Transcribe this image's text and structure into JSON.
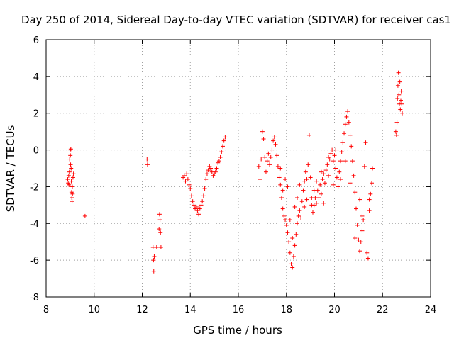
{
  "chart_data": {
    "type": "scatter",
    "title": "Day 250 of 2014, Sidereal Day-to-day VTEC variation (SDTVAR) for receiver cas1",
    "xlabel": "GPS time / hours",
    "ylabel": "SDTVAR / TECUs",
    "xlim": [
      8,
      24
    ],
    "ylim": [
      -8,
      6
    ],
    "xticks": [
      8,
      10,
      12,
      14,
      16,
      18,
      20,
      22,
      24
    ],
    "yticks": [
      -8,
      -6,
      -4,
      -2,
      0,
      2,
      4,
      6
    ],
    "xtick_labels": [
      "8",
      "10",
      "12",
      "14",
      "16",
      "18",
      "20",
      "22",
      "24"
    ],
    "ytick_labels": [
      "-8",
      "-6",
      "-4",
      "-2",
      "0",
      "2",
      "4",
      "6"
    ],
    "grid": true,
    "legend": "none",
    "marker": "+",
    "color": "#ff0000",
    "series": [
      {
        "name": "SDTVAR",
        "points": [
          [
            8.9,
            -1.6
          ],
          [
            8.92,
            -1.8
          ],
          [
            8.94,
            -1.4
          ],
          [
            8.95,
            -1.9
          ],
          [
            8.97,
            -1.2
          ],
          [
            8.98,
            -0.5
          ],
          [
            9.0,
            0.0
          ],
          [
            9.01,
            -0.3
          ],
          [
            9.02,
            -0.8
          ],
          [
            9.03,
            0.05
          ],
          [
            9.04,
            -1.0
          ],
          [
            9.05,
            -1.7
          ],
          [
            9.06,
            -2.3
          ],
          [
            9.07,
            -2.6
          ],
          [
            9.08,
            -2.8
          ],
          [
            9.09,
            -2.0
          ],
          [
            9.1,
            -2.4
          ],
          [
            9.12,
            -1.5
          ],
          [
            9.14,
            -1.3
          ],
          [
            9.62,
            -3.6
          ],
          [
            12.2,
            -0.5
          ],
          [
            12.22,
            -0.8
          ],
          [
            12.45,
            -5.3
          ],
          [
            12.47,
            -6.0
          ],
          [
            12.48,
            -6.6
          ],
          [
            12.5,
            -5.8
          ],
          [
            12.6,
            -5.3
          ],
          [
            12.7,
            -4.3
          ],
          [
            12.72,
            -3.5
          ],
          [
            12.74,
            -3.8
          ],
          [
            12.76,
            -4.5
          ],
          [
            12.78,
            -5.3
          ],
          [
            13.7,
            -1.5
          ],
          [
            13.75,
            -1.4
          ],
          [
            13.8,
            -1.7
          ],
          [
            13.85,
            -1.3
          ],
          [
            13.9,
            -1.6
          ],
          [
            13.95,
            -1.9
          ],
          [
            14.0,
            -2.1
          ],
          [
            14.05,
            -2.5
          ],
          [
            14.1,
            -2.8
          ],
          [
            14.15,
            -3.0
          ],
          [
            14.2,
            -3.2
          ],
          [
            14.25,
            -3.1
          ],
          [
            14.3,
            -3.3
          ],
          [
            14.35,
            -3.5
          ],
          [
            14.4,
            -3.2
          ],
          [
            14.45,
            -3.0
          ],
          [
            14.5,
            -2.8
          ],
          [
            14.55,
            -2.5
          ],
          [
            14.6,
            -2.1
          ],
          [
            14.65,
            -1.6
          ],
          [
            14.7,
            -1.3
          ],
          [
            14.75,
            -1.1
          ],
          [
            14.8,
            -0.9
          ],
          [
            14.85,
            -1.0
          ],
          [
            14.9,
            -1.2
          ],
          [
            14.95,
            -1.4
          ],
          [
            15.0,
            -1.3
          ],
          [
            15.05,
            -1.2
          ],
          [
            15.1,
            -1.0
          ],
          [
            15.15,
            -0.7
          ],
          [
            15.2,
            -0.6
          ],
          [
            15.25,
            -0.4
          ],
          [
            15.3,
            -0.1
          ],
          [
            15.35,
            0.2
          ],
          [
            15.4,
            0.5
          ],
          [
            15.45,
            0.7
          ],
          [
            16.85,
            -0.9
          ],
          [
            16.9,
            -1.6
          ],
          [
            16.95,
            -0.5
          ],
          [
            17.0,
            1.0
          ],
          [
            17.05,
            0.6
          ],
          [
            17.1,
            -0.4
          ],
          [
            17.15,
            -1.2
          ],
          [
            17.2,
            -0.6
          ],
          [
            17.25,
            -0.2
          ],
          [
            17.3,
            -0.8
          ],
          [
            17.35,
            -0.4
          ],
          [
            17.4,
            0.0
          ],
          [
            17.45,
            0.5
          ],
          [
            17.5,
            0.7
          ],
          [
            17.55,
            0.3
          ],
          [
            17.6,
            -0.3
          ],
          [
            17.65,
            -0.9
          ],
          [
            17.7,
            -1.5
          ],
          [
            17.75,
            -1.9
          ],
          [
            17.8,
            -2.6
          ],
          [
            17.85,
            -3.2
          ],
          [
            17.9,
            -3.6
          ],
          [
            17.95,
            -3.8
          ],
          [
            18.0,
            -4.1
          ],
          [
            18.05,
            -4.5
          ],
          [
            18.1,
            -5.0
          ],
          [
            18.15,
            -5.6
          ],
          [
            18.2,
            -6.2
          ],
          [
            18.25,
            -6.4
          ],
          [
            18.3,
            -5.8
          ],
          [
            18.35,
            -5.2
          ],
          [
            18.4,
            -4.6
          ],
          [
            18.45,
            -4.0
          ],
          [
            18.5,
            -3.6
          ],
          [
            18.55,
            -3.3
          ],
          [
            18.6,
            -3.7
          ],
          [
            18.65,
            -2.8
          ],
          [
            18.7,
            -2.2
          ],
          [
            18.75,
            -1.7
          ],
          [
            18.8,
            -1.2
          ],
          [
            18.85,
            -1.6
          ],
          [
            18.9,
            -0.8
          ],
          [
            18.95,
            0.8
          ],
          [
            19.0,
            -1.5
          ],
          [
            19.05,
            -2.6
          ],
          [
            19.1,
            -3.4
          ],
          [
            19.15,
            -3.0
          ],
          [
            19.2,
            -2.6
          ],
          [
            19.25,
            -2.9
          ],
          [
            19.3,
            -2.2
          ],
          [
            19.35,
            -2.6
          ],
          [
            19.4,
            -1.9
          ],
          [
            19.45,
            -2.4
          ],
          [
            19.5,
            -1.6
          ],
          [
            19.55,
            -1.3
          ],
          [
            19.6,
            -1.8
          ],
          [
            19.65,
            -1.1
          ],
          [
            19.7,
            -0.8
          ],
          [
            19.75,
            -1.4
          ],
          [
            19.8,
            -0.5
          ],
          [
            19.85,
            -0.2
          ],
          [
            19.9,
            0.0
          ],
          [
            19.95,
            -0.6
          ],
          [
            20.0,
            -0.3
          ],
          [
            20.05,
            -1.0
          ],
          [
            20.1,
            -1.5
          ],
          [
            20.15,
            -2.0
          ],
          [
            20.2,
            -1.2
          ],
          [
            20.25,
            -0.6
          ],
          [
            20.3,
            -0.1
          ],
          [
            20.35,
            0.4
          ],
          [
            20.4,
            0.9
          ],
          [
            20.45,
            1.4
          ],
          [
            20.5,
            1.8
          ],
          [
            20.55,
            2.1
          ],
          [
            20.6,
            1.5
          ],
          [
            20.65,
            0.8
          ],
          [
            20.7,
            0.2
          ],
          [
            20.75,
            -0.6
          ],
          [
            20.8,
            -1.4
          ],
          [
            20.85,
            -2.3
          ],
          [
            20.9,
            -3.2
          ],
          [
            20.95,
            -4.1
          ],
          [
            21.0,
            -4.9
          ],
          [
            21.05,
            -5.5
          ],
          [
            21.1,
            -5.0
          ],
          [
            21.15,
            -4.4
          ],
          [
            21.2,
            -3.8
          ],
          [
            21.25,
            -0.9
          ],
          [
            21.3,
            0.4
          ],
          [
            21.35,
            -5.6
          ],
          [
            21.4,
            -5.9
          ],
          [
            21.45,
            -3.3
          ],
          [
            21.5,
            -2.4
          ],
          [
            21.55,
            -1.8
          ],
          [
            21.58,
            -1.0
          ],
          [
            17.75,
            -1.0
          ],
          [
            17.85,
            -2.2
          ],
          [
            17.95,
            -1.6
          ],
          [
            18.05,
            -2.0
          ],
          [
            18.15,
            -3.8
          ],
          [
            18.25,
            -4.8
          ],
          [
            18.35,
            -3.1
          ],
          [
            18.45,
            -2.6
          ],
          [
            18.55,
            -1.9
          ],
          [
            18.75,
            -3.1
          ],
          [
            18.85,
            -2.7
          ],
          [
            19.05,
            -3.0
          ],
          [
            19.15,
            -2.2
          ],
          [
            19.25,
            -1.7
          ],
          [
            19.45,
            -1.2
          ],
          [
            19.55,
            -2.9
          ],
          [
            19.75,
            -0.4
          ],
          [
            19.95,
            -1.9
          ],
          [
            20.05,
            0.0
          ],
          [
            20.25,
            -1.6
          ],
          [
            20.45,
            -0.6
          ],
          [
            20.65,
            -1.8
          ],
          [
            20.85,
            -4.8
          ],
          [
            21.05,
            -2.7
          ],
          [
            21.15,
            -3.6
          ],
          [
            21.45,
            -2.7
          ],
          [
            22.55,
            1.0
          ],
          [
            22.58,
            0.8
          ],
          [
            22.6,
            1.5
          ],
          [
            22.62,
            2.8
          ],
          [
            22.64,
            3.5
          ],
          [
            22.66,
            4.2
          ],
          [
            22.68,
            3.0
          ],
          [
            22.7,
            2.5
          ],
          [
            22.72,
            3.7
          ],
          [
            22.74,
            2.2
          ],
          [
            22.76,
            2.7
          ],
          [
            22.78,
            3.2
          ],
          [
            22.8,
            2.5
          ],
          [
            22.82,
            2.0
          ]
        ]
      }
    ]
  }
}
